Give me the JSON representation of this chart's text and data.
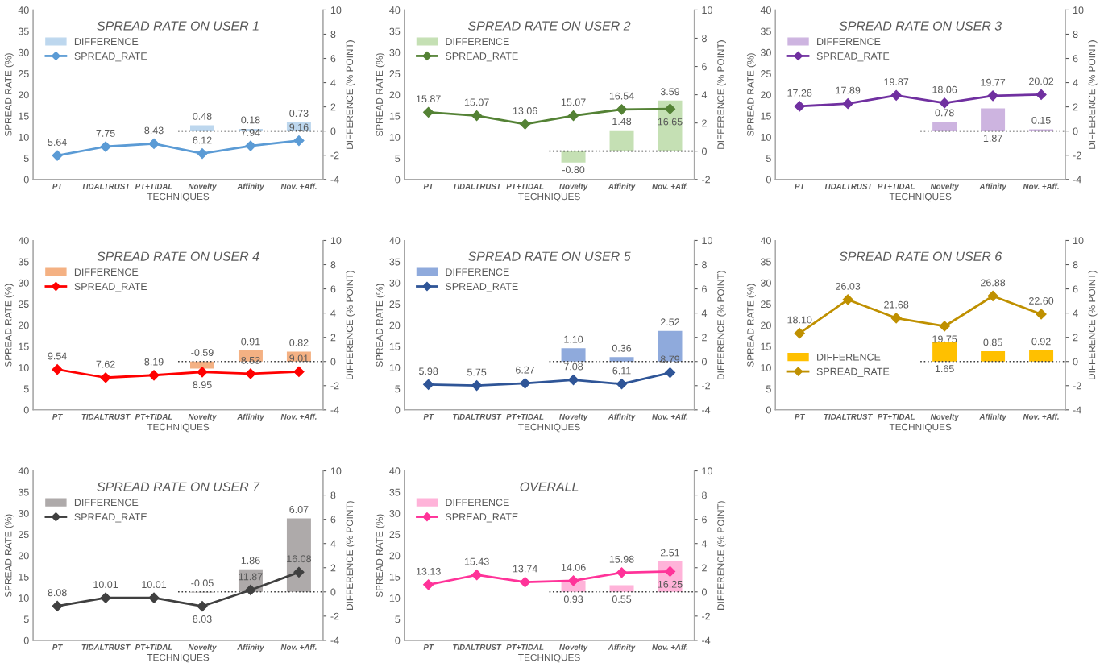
{
  "chart_data": [
    {
      "type": "bar",
      "title": "SPREAD RATE ON USER 1",
      "xlabel": "TECHNIQUES",
      "ylabel": "SPREAD RATE (%)",
      "y2label": "DIFFERENCE (% POINT)",
      "categories": [
        "PT",
        "TIDALTRUST",
        "PT+TIDAL",
        "Novelty",
        "Affinity",
        "Nov. +Aff."
      ],
      "series": [
        {
          "name": "DIFFERENCE",
          "axis": "y2",
          "color": "#bdd7ee",
          "values": [
            null,
            null,
            null,
            0.48,
            0.18,
            0.73
          ],
          "value_labels": [
            null,
            null,
            null,
            "0.48",
            "0.18",
            "0.73"
          ]
        },
        {
          "name": "SPREAD_RATE",
          "type": "line",
          "color": "#5b9bd5",
          "marker": "diamond",
          "values": [
            5.64,
            7.75,
            8.43,
            6.12,
            7.94,
            9.16
          ],
          "value_labels": [
            "5.64",
            "7.75",
            "8.43",
            "6.12",
            "7.94",
            "9.16"
          ]
        }
      ],
      "ylim": [
        0,
        40
      ],
      "yticks": [
        0,
        5,
        10,
        15,
        20,
        25,
        30,
        35,
        40
      ],
      "y2lim": [
        -4,
        10
      ],
      "y2ticks": [
        -4,
        -2,
        0,
        2,
        4,
        6,
        8,
        10
      ],
      "ref_lines": [
        {
          "axis": "y2",
          "value": 0,
          "line_style": "dotted",
          "color": "#404040"
        }
      ],
      "legend": "top left",
      "grid": false
    },
    {
      "type": "bar",
      "title": "SPREAD RATE ON USER 2",
      "xlabel": "TECHNIQUES",
      "ylabel": "SPREAD RATE (%)",
      "y2label": "DIFFERENCE (% POINT)",
      "categories": [
        "PT",
        "TIDALTRUST",
        "PT+TIDAL",
        "Novelty",
        "Affinity",
        "Nov. +Aff."
      ],
      "series": [
        {
          "name": "DIFFERENCE",
          "axis": "y2",
          "color": "#c5e0b4",
          "values": [
            null,
            null,
            null,
            -0.8,
            1.48,
            3.59
          ],
          "value_labels": [
            null,
            null,
            null,
            "-0.80",
            "1.48",
            "3.59"
          ]
        },
        {
          "name": "SPREAD_RATE",
          "type": "line",
          "color": "#548235",
          "marker": "diamond",
          "values": [
            15.87,
            15.07,
            13.06,
            15.07,
            16.54,
            16.65
          ],
          "value_labels": [
            "15.87",
            "15.07",
            "13.06",
            "15.07",
            "16.54",
            "16.65"
          ]
        }
      ],
      "ylim": [
        0,
        40
      ],
      "yticks": [
        0,
        5,
        10,
        15,
        20,
        25,
        30,
        35,
        40
      ],
      "y2lim": [
        -2,
        10
      ],
      "y2ticks": [
        -2,
        0,
        2,
        4,
        6,
        8,
        10
      ],
      "ref_lines": [
        {
          "axis": "y2",
          "value": 0,
          "line_style": "dotted",
          "color": "#404040"
        }
      ],
      "legend": "top left",
      "grid": false
    },
    {
      "type": "bar",
      "title": "SPREAD RATE ON USER 3",
      "xlabel": "TECHNIQUES",
      "ylabel": "SPREAD RATE (%)",
      "y2label": "DIFFERENCE (% POINT)",
      "categories": [
        "PT",
        "TIDALTRUST",
        "PT+TIDAL",
        "Novelty",
        "Affinity",
        "Nov. +Aff."
      ],
      "series": [
        {
          "name": "DIFFERENCE",
          "axis": "y2",
          "color": "#cdb4e0",
          "values": [
            null,
            null,
            null,
            0.78,
            1.87,
            0.15
          ],
          "value_labels": [
            null,
            null,
            null,
            "0.78",
            "1.87",
            "0.15"
          ]
        },
        {
          "name": "SPREAD_RATE",
          "type": "line",
          "color": "#7030a0",
          "marker": "diamond",
          "values": [
            17.28,
            17.89,
            19.87,
            18.06,
            19.77,
            20.02
          ],
          "value_labels": [
            "17.28",
            "17.89",
            "19.87",
            "18.06",
            "19.77",
            "20.02"
          ]
        }
      ],
      "ylim": [
        0,
        40
      ],
      "yticks": [
        0,
        5,
        10,
        15,
        20,
        25,
        30,
        35,
        40
      ],
      "y2lim": [
        -4,
        10
      ],
      "y2ticks": [
        -4,
        -2,
        0,
        2,
        4,
        6,
        8,
        10
      ],
      "ref_lines": [
        {
          "axis": "y2",
          "value": 0,
          "line_style": "dotted",
          "color": "#404040"
        }
      ],
      "legend": "top left",
      "grid": false
    },
    {
      "type": "bar",
      "title": "SPREAD RATE ON USER 4",
      "xlabel": "TECHNIQUES",
      "ylabel": "SPREAD RATE (%)",
      "y2label": "DIFFERENCE (% POINT)",
      "categories": [
        "PT",
        "TIDALTRUST",
        "PT+TIDAL",
        "Novelty",
        "Affinity",
        "Nov. +Aff."
      ],
      "series": [
        {
          "name": "DIFFERENCE",
          "axis": "y2",
          "color": "#f4b183",
          "values": [
            null,
            null,
            null,
            -0.59,
            0.91,
            0.82
          ],
          "value_labels": [
            null,
            null,
            null,
            "-0.59",
            "0.91",
            "0.82"
          ]
        },
        {
          "name": "SPREAD_RATE",
          "type": "line",
          "color": "#ff0000",
          "marker": "diamond",
          "values": [
            9.54,
            7.62,
            8.19,
            8.95,
            8.53,
            9.01
          ],
          "value_labels": [
            "9.54",
            "7.62",
            "8.19",
            "8.95",
            "8.53",
            "9.01"
          ]
        }
      ],
      "ylim": [
        0,
        40
      ],
      "yticks": [
        0,
        5,
        10,
        15,
        20,
        25,
        30,
        35,
        40
      ],
      "y2lim": [
        -4,
        10
      ],
      "y2ticks": [
        -4,
        -2,
        0,
        2,
        4,
        6,
        8,
        10
      ],
      "ref_lines": [
        {
          "axis": "y2",
          "value": 0,
          "line_style": "dotted",
          "color": "#404040"
        }
      ],
      "legend": "top left",
      "grid": false
    },
    {
      "type": "bar",
      "title": "SPREAD RATE ON USER 5",
      "xlabel": "TECHNIQUES",
      "ylabel": "SPREAD RATE (%)",
      "y2label": "DIFFERENCE (% POINT)",
      "categories": [
        "PT",
        "TIDALTRUST",
        "PT+TIDAL",
        "Novelty",
        "Affinity",
        "Nov. +Aff."
      ],
      "series": [
        {
          "name": "DIFFERENCE",
          "axis": "y2",
          "color": "#8faadc",
          "values": [
            null,
            null,
            null,
            1.1,
            0.36,
            2.52
          ],
          "value_labels": [
            null,
            null,
            null,
            "1.10",
            "0.36",
            "2.52"
          ]
        },
        {
          "name": "SPREAD_RATE",
          "type": "line",
          "color": "#2f5597",
          "marker": "diamond",
          "values": [
            5.98,
            5.75,
            6.27,
            7.08,
            6.11,
            8.79
          ],
          "value_labels": [
            "5.98",
            "5.75",
            "6.27",
            "7.08",
            "6.11",
            "8.79"
          ]
        }
      ],
      "ylim": [
        0,
        40
      ],
      "yticks": [
        0,
        5,
        10,
        15,
        20,
        25,
        30,
        35,
        40
      ],
      "y2lim": [
        -4,
        10
      ],
      "y2ticks": [
        -4,
        -2,
        0,
        2,
        4,
        6,
        8,
        10
      ],
      "ref_lines": [
        {
          "axis": "y2",
          "value": 0,
          "line_style": "dotted",
          "color": "#404040"
        }
      ],
      "legend": "top left",
      "grid": false
    },
    {
      "type": "bar",
      "title": "SPREAD RATE ON USER 6",
      "xlabel": "TECHNIQUES",
      "ylabel": "SPREAD RATE (%)",
      "y2label": "DIFFERENCE (% POINT)",
      "categories": [
        "PT",
        "TIDALTRUST",
        "PT+TIDAL",
        "Novelty",
        "Affinity",
        "Nov. +Aff."
      ],
      "series": [
        {
          "name": "DIFFERENCE",
          "axis": "y2",
          "color": "#ffc000",
          "values": [
            null,
            null,
            null,
            1.65,
            0.85,
            0.92
          ],
          "value_labels": [
            null,
            null,
            null,
            "1.65",
            "0.85",
            "0.92"
          ]
        },
        {
          "name": "SPREAD_RATE",
          "type": "line",
          "color": "#bf9000",
          "marker": "diamond",
          "values": [
            18.1,
            26.03,
            21.68,
            19.75,
            26.88,
            22.6
          ],
          "value_labels": [
            "18.10",
            "26.03",
            "21.68",
            "19.75",
            "26.88",
            "22.60"
          ]
        }
      ],
      "ylim": [
        0,
        40
      ],
      "yticks": [
        0,
        5,
        10,
        15,
        20,
        25,
        30,
        35,
        40
      ],
      "y2lim": [
        -4,
        10
      ],
      "y2ticks": [
        -4,
        -2,
        0,
        2,
        4,
        6,
        8,
        10
      ],
      "ref_lines": [
        {
          "axis": "y2",
          "value": 0,
          "line_style": "dotted",
          "color": "#404040"
        }
      ],
      "legend": "bottom left",
      "grid": false
    },
    {
      "type": "bar",
      "title": "SPREAD RATE ON USER 7",
      "xlabel": "TECHNIQUES",
      "ylabel": "SPREAD RATE (%)",
      "y2label": "DIFFERENCE (% POINT)",
      "categories": [
        "PT",
        "TIDALTRUST",
        "PT+TIDAL",
        "Novelty",
        "Affinity",
        "Nov. +Aff."
      ],
      "series": [
        {
          "name": "DIFFERENCE",
          "axis": "y2",
          "color": "#aeaaaa",
          "values": [
            null,
            null,
            null,
            -0.05,
            1.86,
            6.07
          ],
          "value_labels": [
            null,
            null,
            null,
            "-0.05",
            "1.86",
            "6.07"
          ]
        },
        {
          "name": "SPREAD_RATE",
          "type": "line",
          "color": "#404040",
          "marker": "diamond",
          "values": [
            8.08,
            10.01,
            10.01,
            8.03,
            11.87,
            16.08
          ],
          "value_labels": [
            "8.08",
            "10.01",
            "10.01",
            "8.03",
            "11.87",
            "16.08"
          ]
        }
      ],
      "ylim": [
        0,
        40
      ],
      "yticks": [
        0,
        5,
        10,
        15,
        20,
        25,
        30,
        35,
        40
      ],
      "y2lim": [
        -4,
        10
      ],
      "y2ticks": [
        -4,
        -2,
        0,
        2,
        4,
        6,
        8,
        10
      ],
      "ref_lines": [
        {
          "axis": "y2",
          "value": 0,
          "line_style": "dotted",
          "color": "#404040"
        }
      ],
      "legend": "top left",
      "grid": false
    },
    {
      "type": "bar",
      "title": "OVERALL",
      "xlabel": "TECHNIQUES",
      "ylabel": "SPREAD RATE (%)",
      "y2label": "DIFFERENCE (% POINT)",
      "categories": [
        "PT",
        "TIDALTRUST",
        "PT+TIDAL",
        "Novelty",
        "Affinity",
        "Nov. +Aff."
      ],
      "series": [
        {
          "name": "DIFFERENCE",
          "axis": "y2",
          "color": "#ffb3d9",
          "values": [
            null,
            null,
            null,
            0.93,
            0.55,
            2.51
          ],
          "value_labels": [
            null,
            null,
            null,
            "0.93",
            "0.55",
            "2.51"
          ]
        },
        {
          "name": "SPREAD_RATE",
          "type": "line",
          "color": "#ff3399",
          "marker": "diamond",
          "values": [
            13.13,
            15.43,
            13.74,
            14.06,
            15.98,
            16.25
          ],
          "value_labels": [
            "13.13",
            "15.43",
            "13.74",
            "14.06",
            "15.98",
            "16.25"
          ]
        }
      ],
      "ylim": [
        0,
        40
      ],
      "yticks": [
        0,
        5,
        10,
        15,
        20,
        25,
        30,
        35,
        40
      ],
      "y2lim": [
        -4,
        10
      ],
      "y2ticks": [
        -4,
        -2,
        0,
        2,
        4,
        6,
        8,
        10
      ],
      "ref_lines": [
        {
          "axis": "y2",
          "value": 0,
          "line_style": "dotted",
          "color": "#404040"
        }
      ],
      "legend": "top left",
      "grid": false
    }
  ]
}
